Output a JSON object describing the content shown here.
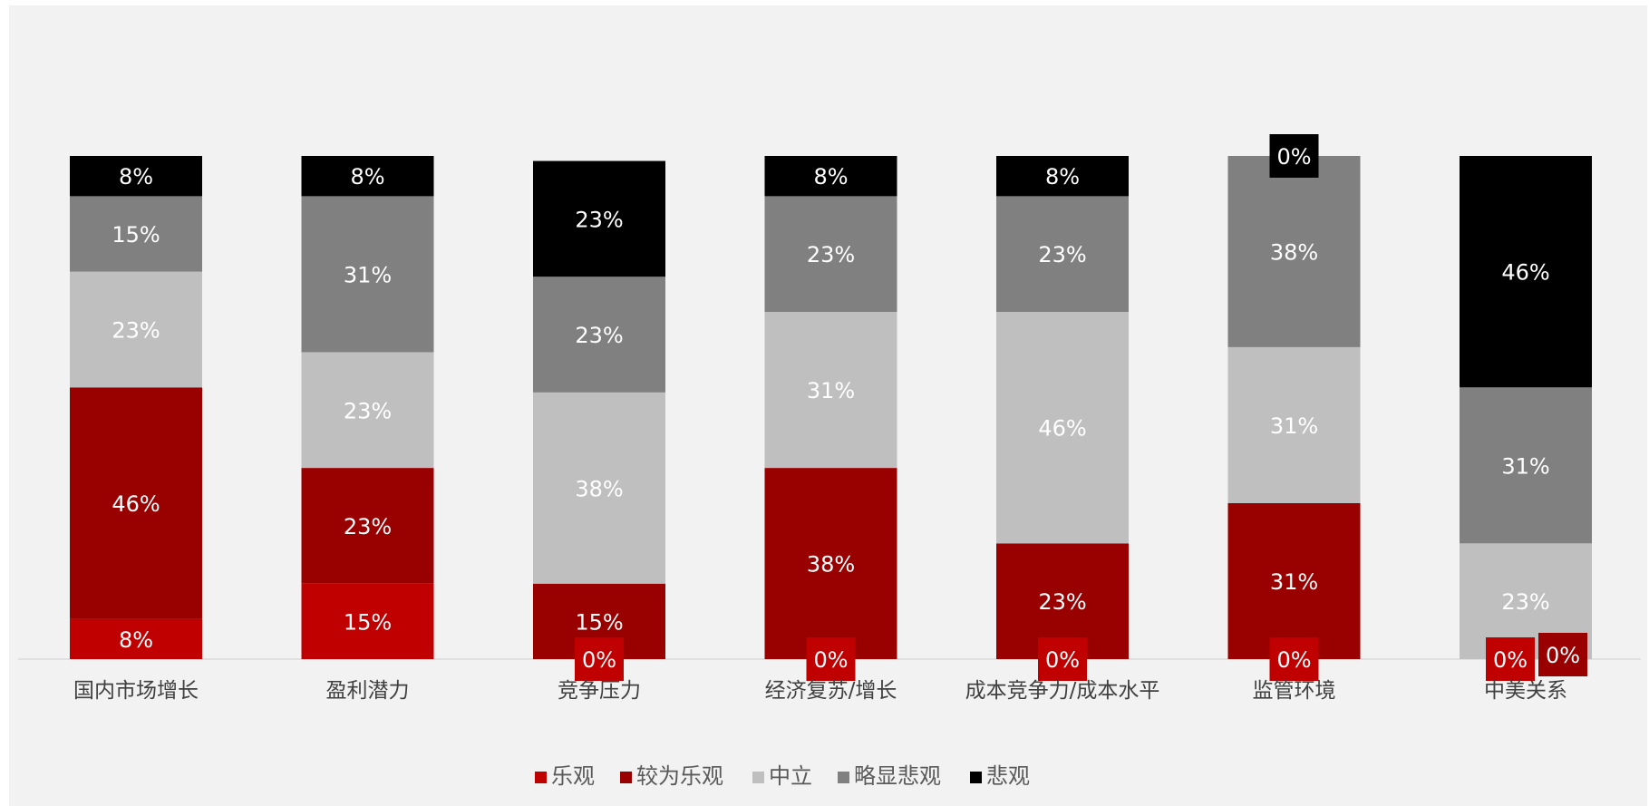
{
  "chart_data": {
    "type": "bar",
    "stacked": true,
    "percent": true,
    "title": "",
    "xlabel": "",
    "ylabel": "",
    "ylim": [
      0,
      100
    ],
    "grid": false,
    "legend_position": "bottom",
    "categories": [
      "国内市场增长",
      "盈利潜力",
      "竞争压力",
      "经济复苏/增长",
      "成本竞争力/成本水平",
      "监管环境",
      "中美关系"
    ],
    "series": [
      {
        "name": "乐观",
        "color": "#c00000",
        "values": [
          8,
          15,
          0,
          0,
          0,
          0,
          0
        ],
        "labels": [
          "8%",
          "15%",
          "0%",
          "0%",
          "0%",
          "0%",
          "0%"
        ]
      },
      {
        "name": "较为乐观",
        "color": "#990000",
        "values": [
          46,
          23,
          15,
          38,
          23,
          31,
          0
        ],
        "labels": [
          "46%",
          "23%",
          "15%",
          "38%",
          "23%",
          "31%",
          "0%"
        ]
      },
      {
        "name": "中立",
        "color": "#bfbfbf",
        "values": [
          23,
          23,
          38,
          31,
          46,
          31,
          23
        ],
        "labels": [
          "23%",
          "23%",
          "38%",
          "31%",
          "46%",
          "31%",
          "23%"
        ]
      },
      {
        "name": "略显悲观",
        "color": "#808080",
        "values": [
          15,
          31,
          23,
          23,
          23,
          38,
          31
        ],
        "labels": [
          "15%",
          "31%",
          "23%",
          "23%",
          "23%",
          "38%",
          "31%"
        ]
      },
      {
        "name": "悲观",
        "color": "#000000",
        "values": [
          8,
          8,
          23,
          8,
          8,
          0,
          46
        ],
        "labels": [
          "8%",
          "8%",
          "23%",
          "8%",
          "8%",
          "0%",
          "46%"
        ]
      }
    ]
  }
}
